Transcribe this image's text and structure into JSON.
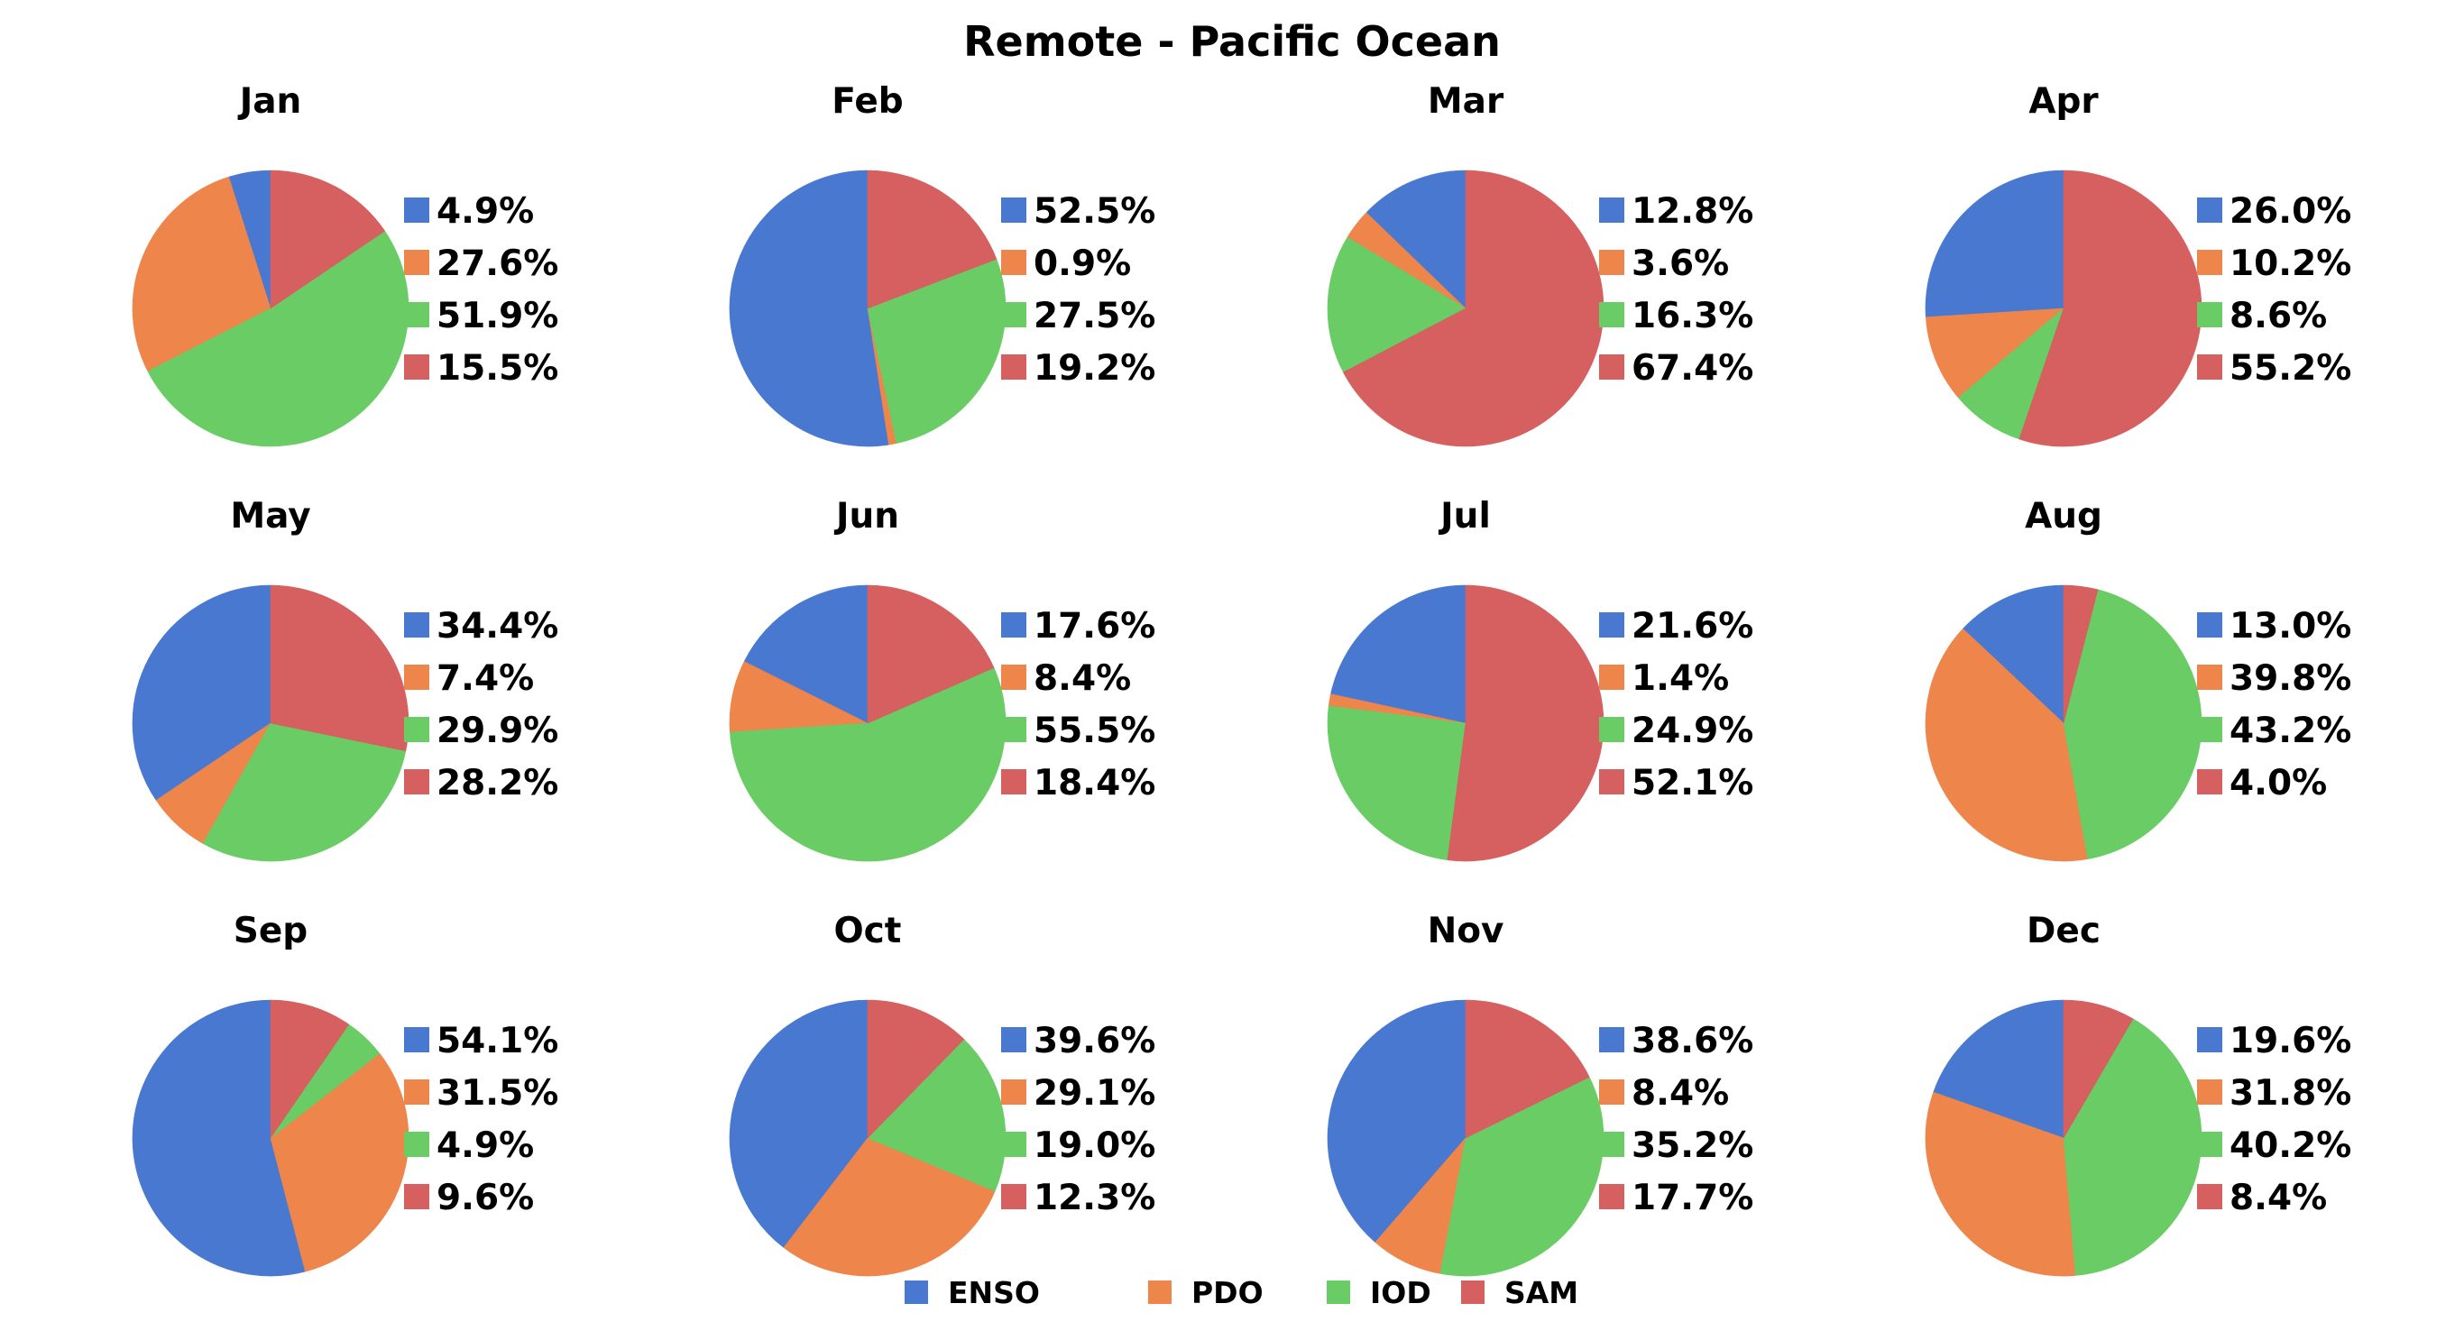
{
  "chart_data": {
    "type": "pie",
    "title": "Remote - Pacific Ocean",
    "series_names": [
      "ENSO",
      "PDO",
      "IOD",
      "SAM"
    ],
    "colors": {
      "ENSO": "#4878d0",
      "PDO": "#ee854a",
      "IOD": "#6acc64",
      "SAM": "#d65f5f"
    },
    "legend_placement": "bottom-center",
    "start_angle_deg": 90,
    "direction": "counterclockwise",
    "months": [
      {
        "label": "Jan",
        "values": [
          4.9,
          27.6,
          51.9,
          15.5
        ],
        "labels": [
          "4.9%",
          "27.6%",
          "51.9%",
          "15.5%"
        ]
      },
      {
        "label": "Feb",
        "values": [
          52.5,
          0.9,
          27.5,
          19.2
        ],
        "labels": [
          "52.5%",
          "0.9%",
          "27.5%",
          "19.2%"
        ]
      },
      {
        "label": "Mar",
        "values": [
          12.8,
          3.6,
          16.3,
          67.4
        ],
        "labels": [
          "12.8%",
          "3.6%",
          "16.3%",
          "67.4%"
        ]
      },
      {
        "label": "Apr",
        "values": [
          26.0,
          10.2,
          8.6,
          55.2
        ],
        "labels": [
          "26.0%",
          "10.2%",
          "8.6%",
          "55.2%"
        ]
      },
      {
        "label": "May",
        "values": [
          34.4,
          7.4,
          29.9,
          28.2
        ],
        "labels": [
          "34.4%",
          "7.4%",
          "29.9%",
          "28.2%"
        ]
      },
      {
        "label": "Jun",
        "values": [
          17.6,
          8.4,
          55.5,
          18.4
        ],
        "labels": [
          "17.6%",
          "8.4%",
          "55.5%",
          "18.4%"
        ]
      },
      {
        "label": "Jul",
        "values": [
          21.6,
          1.4,
          24.9,
          52.1
        ],
        "labels": [
          "21.6%",
          "1.4%",
          "24.9%",
          "52.1%"
        ]
      },
      {
        "label": "Aug",
        "values": [
          13.0,
          39.8,
          43.2,
          4.0
        ],
        "labels": [
          "13.0%",
          "39.8%",
          "43.2%",
          "4.0%"
        ]
      },
      {
        "label": "Sep",
        "values": [
          54.1,
          31.5,
          4.9,
          9.6
        ],
        "labels": [
          "54.1%",
          "31.5%",
          "4.9%",
          "9.6%"
        ]
      },
      {
        "label": "Oct",
        "values": [
          39.6,
          29.1,
          19.0,
          12.3
        ],
        "labels": [
          "39.6%",
          "29.1%",
          "19.0%",
          "12.3%"
        ]
      },
      {
        "label": "Nov",
        "values": [
          38.6,
          8.4,
          35.2,
          17.7
        ],
        "labels": [
          "38.6%",
          "8.4%",
          "35.2%",
          "17.7%"
        ]
      },
      {
        "label": "Dec",
        "values": [
          19.6,
          31.8,
          40.2,
          8.4
        ],
        "labels": [
          "19.6%",
          "31.8%",
          "40.2%",
          "8.4%"
        ]
      }
    ]
  }
}
